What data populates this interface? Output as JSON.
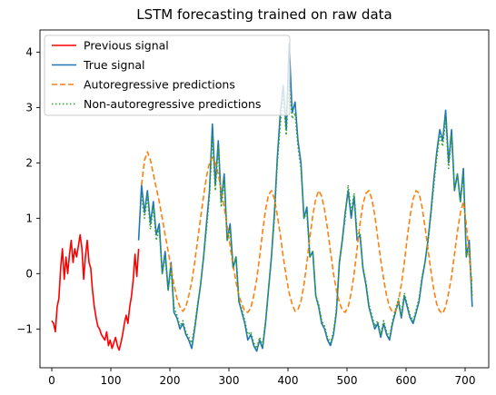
{
  "chart_data": {
    "type": "line",
    "title": "LSTM forecasting trained on raw data",
    "xlabel": "",
    "ylabel": "",
    "xlim": [
      -20,
      740
    ],
    "ylim": [
      -1.7,
      4.4
    ],
    "xticks": [
      0,
      100,
      200,
      300,
      400,
      500,
      600,
      700
    ],
    "yticks": [
      -1,
      0,
      1,
      2,
      3,
      4
    ],
    "xtick_labels": [
      "0",
      "100",
      "200",
      "300",
      "400",
      "500",
      "600",
      "700"
    ],
    "ytick_labels": [
      "−1",
      "0",
      "1",
      "2",
      "3",
      "4"
    ],
    "grid": false,
    "legend_position": "top-left",
    "series": [
      {
        "name": "Previous signal",
        "color": "#ff0000",
        "style": "solid",
        "x": [
          0,
          3,
          6,
          9,
          12,
          15,
          18,
          21,
          24,
          27,
          30,
          33,
          36,
          39,
          42,
          45,
          48,
          51,
          54,
          57,
          60,
          63,
          66,
          69,
          72,
          75,
          78,
          81,
          84,
          87,
          90,
          93,
          96,
          99,
          102,
          105,
          108,
          111,
          114,
          117,
          120,
          123,
          126,
          129,
          132,
          135,
          138,
          141,
          144,
          147
        ],
        "y": [
          -0.85,
          -0.9,
          -1.05,
          -0.6,
          -0.45,
          0.1,
          0.45,
          -0.1,
          0.3,
          0.0,
          0.35,
          0.6,
          0.2,
          0.45,
          0.3,
          0.5,
          0.7,
          0.45,
          -0.1,
          0.3,
          0.6,
          0.2,
          0.1,
          -0.3,
          -0.6,
          -0.8,
          -0.95,
          -1.0,
          -1.1,
          -1.15,
          -1.2,
          -1.05,
          -1.3,
          -1.2,
          -1.35,
          -1.25,
          -1.15,
          -1.3,
          -1.38,
          -1.25,
          -1.1,
          -0.9,
          -0.75,
          -0.9,
          -0.6,
          -0.4,
          -0.1,
          0.35,
          -0.05,
          0.45
        ]
      },
      {
        "name": "True signal",
        "color": "#1f77b4",
        "style": "solid",
        "x": [
          147,
          152,
          157,
          162,
          167,
          172,
          177,
          182,
          187,
          192,
          197,
          202,
          207,
          212,
          217,
          222,
          227,
          232,
          237,
          242,
          247,
          252,
          257,
          262,
          267,
          272,
          277,
          282,
          287,
          292,
          297,
          302,
          307,
          312,
          317,
          322,
          327,
          332,
          337,
          342,
          347,
          352,
          357,
          362,
          367,
          372,
          377,
          382,
          387,
          392,
          397,
          402,
          407,
          412,
          417,
          422,
          427,
          432,
          437,
          442,
          447,
          452,
          457,
          462,
          467,
          472,
          477,
          482,
          487,
          492,
          497,
          502,
          507,
          512,
          517,
          522,
          527,
          532,
          537,
          542,
          547,
          552,
          557,
          562,
          567,
          572,
          577,
          582,
          587,
          592,
          597,
          602,
          607,
          612,
          617,
          622,
          627,
          632,
          637,
          642,
          647,
          652,
          657,
          662,
          667,
          672,
          677,
          682,
          687,
          692,
          697,
          702,
          707,
          712
        ],
        "y": [
          0.6,
          1.6,
          1.1,
          1.5,
          0.9,
          1.3,
          0.7,
          0.9,
          0.0,
          0.4,
          -0.3,
          0.2,
          -0.7,
          -0.8,
          -1.0,
          -0.9,
          -1.1,
          -1.2,
          -1.35,
          -1.0,
          -0.6,
          -0.2,
          0.3,
          0.9,
          1.5,
          2.7,
          1.6,
          2.4,
          1.3,
          1.8,
          0.6,
          0.9,
          0.1,
          0.3,
          -0.5,
          -0.7,
          -0.9,
          -1.2,
          -1.1,
          -1.3,
          -1.4,
          -1.2,
          -1.35,
          -0.9,
          -0.3,
          0.3,
          1.1,
          2.1,
          2.9,
          3.4,
          2.6,
          4.15,
          2.9,
          3.1,
          2.4,
          2.0,
          1.0,
          1.2,
          0.3,
          0.4,
          -0.4,
          -0.6,
          -0.9,
          -1.0,
          -1.2,
          -1.3,
          -1.1,
          -0.7,
          0.2,
          0.6,
          1.1,
          1.5,
          1.0,
          1.4,
          0.6,
          0.7,
          0.1,
          -0.2,
          -0.6,
          -0.8,
          -1.0,
          -0.9,
          -1.15,
          -0.9,
          -1.1,
          -1.2,
          -0.9,
          -0.7,
          -0.5,
          -0.8,
          -0.4,
          -0.6,
          -0.8,
          -0.9,
          -0.7,
          -0.5,
          -0.1,
          0.2,
          0.6,
          1.1,
          1.7,
          2.2,
          2.6,
          2.4,
          2.95,
          2.0,
          2.6,
          1.5,
          1.8,
          1.3,
          1.9,
          0.3,
          0.6,
          -0.6
        ]
      },
      {
        "name": "Autoregressive predictions",
        "color": "#ff7f0e",
        "style": "dashed",
        "x": [
          152,
          157,
          162,
          167,
          172,
          177,
          182,
          187,
          192,
          197,
          202,
          207,
          212,
          217,
          222,
          227,
          232,
          237,
          242,
          247,
          252,
          257,
          262,
          267,
          272,
          277,
          282,
          287,
          292,
          297,
          302,
          307,
          312,
          317,
          322,
          327,
          332,
          337,
          342,
          347,
          352,
          357,
          362,
          367,
          372,
          377,
          382,
          387,
          392,
          397,
          402,
          407,
          412,
          417,
          422,
          427,
          432,
          437,
          442,
          447,
          452,
          457,
          462,
          467,
          472,
          477,
          482,
          487,
          492,
          497,
          502,
          507,
          512,
          517,
          522,
          527,
          532,
          537,
          542,
          547,
          552,
          557,
          562,
          567,
          572,
          577,
          582,
          587,
          592,
          597,
          602,
          607,
          612,
          617,
          622,
          627,
          632,
          637,
          642,
          647,
          652,
          657,
          662,
          667,
          672,
          677,
          682,
          687,
          692,
          697,
          702,
          707,
          712
        ],
        "y": [
          1.6,
          2.05,
          2.2,
          2.05,
          1.8,
          1.55,
          1.3,
          1.0,
          0.7,
          0.4,
          0.1,
          -0.2,
          -0.45,
          -0.6,
          -0.68,
          -0.6,
          -0.4,
          -0.15,
          0.2,
          0.6,
          1.0,
          1.4,
          1.75,
          2.0,
          2.1,
          2.0,
          1.8,
          1.5,
          1.2,
          0.85,
          0.5,
          0.15,
          -0.15,
          -0.4,
          -0.55,
          -0.68,
          -0.7,
          -0.62,
          -0.4,
          -0.1,
          0.3,
          0.75,
          1.15,
          1.42,
          1.5,
          1.35,
          1.05,
          0.7,
          0.3,
          -0.05,
          -0.35,
          -0.55,
          -0.68,
          -0.65,
          -0.5,
          -0.2,
          0.2,
          0.65,
          1.05,
          1.35,
          1.5,
          1.4,
          1.15,
          0.8,
          0.4,
          0.0,
          -0.3,
          -0.52,
          -0.66,
          -0.7,
          -0.6,
          -0.35,
          0.0,
          0.45,
          0.9,
          1.25,
          1.45,
          1.5,
          1.35,
          1.05,
          0.65,
          0.25,
          -0.1,
          -0.4,
          -0.6,
          -0.7,
          -0.68,
          -0.5,
          -0.2,
          0.2,
          0.65,
          1.05,
          1.35,
          1.5,
          1.45,
          1.2,
          0.85,
          0.45,
          0.05,
          -0.3,
          -0.55,
          -0.68,
          -0.72,
          -0.6,
          -0.35,
          -0.05,
          0.35,
          0.75,
          1.1,
          1.3,
          0.9,
          0.3,
          -0.2
        ]
      },
      {
        "name": "Non-autoregressive predictions",
        "color": "#2ca02c",
        "style": "dotted",
        "x": [
          152,
          157,
          162,
          167,
          172,
          177,
          182,
          187,
          192,
          197,
          202,
          207,
          212,
          217,
          222,
          227,
          232,
          237,
          242,
          247,
          252,
          257,
          262,
          267,
          272,
          277,
          282,
          287,
          292,
          297,
          302,
          307,
          312,
          317,
          322,
          327,
          332,
          337,
          342,
          347,
          352,
          357,
          362,
          367,
          372,
          377,
          382,
          387,
          392,
          397,
          402,
          407,
          412,
          417,
          422,
          427,
          432,
          437,
          442,
          447,
          452,
          457,
          462,
          467,
          472,
          477,
          482,
          487,
          492,
          497,
          502,
          507,
          512,
          517,
          522,
          527,
          532,
          537,
          542,
          547,
          552,
          557,
          562,
          567,
          572,
          577,
          582,
          587,
          592,
          597,
          602,
          607,
          612,
          617,
          622,
          627,
          632,
          637,
          642,
          647,
          652,
          657,
          662,
          667,
          672,
          677,
          682,
          687,
          692,
          697,
          702,
          707,
          712
        ],
        "y": [
          1.4,
          1.0,
          1.4,
          0.8,
          1.2,
          0.6,
          0.8,
          0.0,
          0.3,
          -0.3,
          0.1,
          -0.6,
          -0.75,
          -0.95,
          -0.85,
          -1.05,
          -1.15,
          -1.25,
          -0.95,
          -0.55,
          -0.2,
          0.3,
          0.8,
          1.4,
          2.5,
          1.5,
          2.3,
          1.2,
          1.7,
          0.6,
          0.8,
          0.1,
          0.3,
          -0.5,
          -0.65,
          -0.85,
          -1.1,
          -1.05,
          -1.25,
          -1.35,
          -1.15,
          -1.3,
          -0.85,
          -0.3,
          0.3,
          1.0,
          2.0,
          2.7,
          3.2,
          2.5,
          3.5,
          2.8,
          2.9,
          2.3,
          1.9,
          1.0,
          1.1,
          0.3,
          0.4,
          -0.4,
          -0.55,
          -0.85,
          -0.95,
          -1.15,
          -1.25,
          -1.05,
          -0.65,
          0.2,
          0.6,
          1.0,
          1.6,
          1.1,
          1.45,
          0.7,
          0.75,
          0.1,
          -0.15,
          -0.55,
          -0.75,
          -0.95,
          -0.85,
          -1.1,
          -0.85,
          -1.05,
          -1.15,
          -0.85,
          -0.65,
          -0.45,
          -0.75,
          -0.35,
          -0.55,
          -0.75,
          -0.85,
          -0.65,
          -0.45,
          -0.05,
          0.2,
          0.55,
          1.05,
          1.6,
          2.1,
          2.5,
          2.3,
          2.8,
          1.9,
          2.5,
          1.5,
          1.8,
          1.3,
          1.8,
          0.3,
          0.5,
          -0.4
        ]
      }
    ]
  }
}
